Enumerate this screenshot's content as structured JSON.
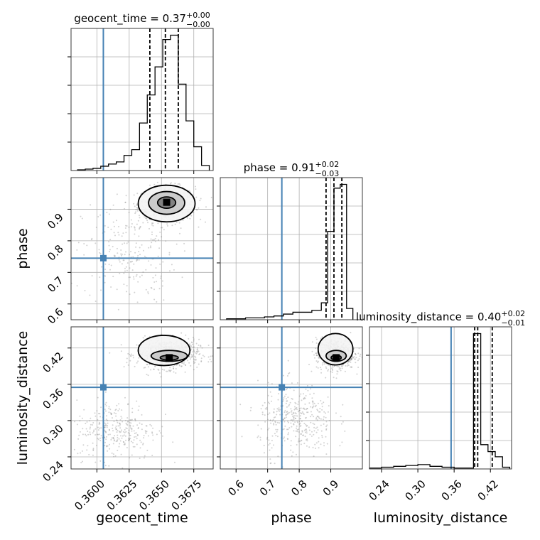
{
  "chart_data": {
    "type": "corner",
    "colors": {
      "truth": "#4682b4",
      "hist": "#000000",
      "quantile": "#000000",
      "samples": "#7f7f7f",
      "grid": "#b0b0b0"
    },
    "parameters": [
      {
        "name": "geocent_time",
        "xlabel": "geocent_time",
        "title_base": "geocent_time = 0.37",
        "title_plus": "+0.00",
        "title_minus": "−0.00",
        "lim": [
          0.358,
          0.369
        ],
        "ticks": [
          0.36,
          0.3625,
          0.365,
          0.3675
        ],
        "tick_labels": [
          "0.3600",
          "0.3625",
          "0.3650",
          "0.3675"
        ],
        "truth": 0.3605,
        "quantiles": [
          0.3641,
          0.3653,
          0.3663
        ],
        "hist_edges": [
          0.3585,
          0.3591,
          0.3597,
          0.3603,
          0.3609,
          0.3615,
          0.3621,
          0.3627,
          0.3633,
          0.3639,
          0.3645,
          0.3651,
          0.3657,
          0.3663,
          0.3669,
          0.3675,
          0.3681,
          0.3687
        ],
        "hist_counts": [
          0.5,
          1,
          1.5,
          3,
          4.5,
          6,
          10.5,
          14.5,
          33,
          52.5,
          72,
          91,
          94,
          60,
          34.5,
          16.5,
          3.5
        ]
      },
      {
        "name": "phase",
        "xlabel": "phase",
        "title_base": "phase = 0.91",
        "title_plus": "+0.02",
        "title_minus": "−0.03",
        "lim": [
          0.55,
          1.0
        ],
        "ticks": [
          0.6,
          0.7,
          0.8,
          0.9
        ],
        "tick_labels": [
          "0.6",
          "0.7",
          "0.8",
          "0.9"
        ],
        "truth": 0.745,
        "quantiles": [
          0.885,
          0.91,
          0.935
        ],
        "hist_edges": [
          0.57,
          0.6,
          0.63,
          0.66,
          0.69,
          0.72,
          0.75,
          0.78,
          0.81,
          0.84,
          0.87,
          0.89,
          0.91,
          0.93,
          0.95,
          0.97
        ],
        "hist_counts": [
          0.5,
          0.5,
          1,
          1,
          1.5,
          2,
          3,
          4,
          4,
          5,
          9,
          47,
          70,
          72,
          6
        ]
      },
      {
        "name": "luminosity_distance",
        "xlabel": "luminosity_distance",
        "title_base": "luminosity_distance = 0.40",
        "title_plus": "+0.02",
        "title_minus": "−0.01",
        "lim": [
          0.22,
          0.455
        ],
        "ticks": [
          0.24,
          0.3,
          0.36,
          0.42
        ],
        "tick_labels": [
          "0.24",
          "0.30",
          "0.36",
          "0.42"
        ],
        "truth": 0.355,
        "quantiles": [
          0.394,
          0.399,
          0.423
        ],
        "hist_edges": [
          0.22,
          0.24,
          0.26,
          0.28,
          0.3,
          0.32,
          0.34,
          0.36,
          0.38,
          0.392,
          0.404,
          0.416,
          0.428,
          0.44,
          0.452
        ],
        "hist_counts": [
          0.5,
          1,
          1.5,
          2,
          2.5,
          1.5,
          1,
          0.5,
          0.5,
          78,
          14,
          10,
          7,
          1
        ]
      }
    ],
    "pairs": [
      {
        "row": 1,
        "col": 0,
        "x": "geocent_time",
        "y": "phase",
        "ylim": [
          0.55,
          1.0
        ],
        "yticks": [
          0.6,
          0.7,
          0.8,
          0.9
        ],
        "ytick_labels": [
          "0.6",
          "0.7",
          "0.8",
          "0.9"
        ],
        "truth": [
          0.3605,
          0.745
        ],
        "blobs": [
          {
            "cx": 0.3654,
            "cy": 0.915,
            "sx": 0.0011,
            "sy": 0.028,
            "n": 700
          },
          {
            "cx": 0.3625,
            "cy": 0.76,
            "sx": 0.0018,
            "sy": 0.08,
            "n": 220
          }
        ],
        "contours": [
          {
            "cx": 0.3654,
            "cy": 0.918,
            "rx": 0.0022,
            "ry": 0.058
          },
          {
            "cx": 0.3654,
            "cy": 0.92,
            "rx": 0.0014,
            "ry": 0.036
          },
          {
            "cx": 0.3654,
            "cy": 0.921,
            "rx": 0.0007,
            "ry": 0.018
          }
        ],
        "peak": [
          0.3654,
          0.922
        ]
      },
      {
        "row": 2,
        "col": 0,
        "x": "geocent_time",
        "y": "luminosity_distance",
        "ylim": [
          0.22,
          0.455
        ],
        "yticks": [
          0.24,
          0.3,
          0.36,
          0.42
        ],
        "ytick_labels": [
          "0.24",
          "0.30",
          "0.36",
          "0.42"
        ],
        "truth": [
          0.3605,
          0.355
        ],
        "blobs": [
          {
            "cx": 0.3655,
            "cy": 0.41,
            "sx": 0.0012,
            "sy": 0.012,
            "n": 650
          },
          {
            "cx": 0.3615,
            "cy": 0.285,
            "sx": 0.0016,
            "sy": 0.025,
            "n": 320
          }
        ],
        "contours": [
          {
            "cx": 0.3652,
            "cy": 0.416,
            "rx": 0.002,
            "ry": 0.025
          },
          {
            "cx": 0.3656,
            "cy": 0.407,
            "rx": 0.0014,
            "ry": 0.009
          },
          {
            "cx": 0.3656,
            "cy": 0.404,
            "rx": 0.0007,
            "ry": 0.004
          }
        ],
        "peak": [
          0.3656,
          0.404
        ]
      },
      {
        "row": 2,
        "col": 1,
        "x": "phase",
        "y": "luminosity_distance",
        "ylim": [
          0.22,
          0.455
        ],
        "yticks": [],
        "ytick_labels": [],
        "truth": [
          0.745,
          0.355
        ],
        "blobs": [
          {
            "cx": 0.915,
            "cy": 0.41,
            "sx": 0.03,
            "sy": 0.013,
            "n": 650
          },
          {
            "cx": 0.79,
            "cy": 0.3,
            "sx": 0.06,
            "sy": 0.03,
            "n": 380
          }
        ],
        "contours": [
          {
            "cx": 0.915,
            "cy": 0.418,
            "rx": 0.055,
            "ry": 0.026
          },
          {
            "cx": 0.917,
            "cy": 0.407,
            "rx": 0.032,
            "ry": 0.009
          },
          {
            "cx": 0.917,
            "cy": 0.404,
            "rx": 0.016,
            "ry": 0.004
          }
        ],
        "peak": [
          0.917,
          0.404
        ]
      }
    ]
  }
}
